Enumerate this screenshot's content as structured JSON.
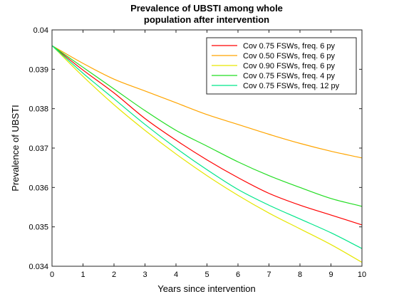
{
  "chart_data": {
    "type": "line",
    "title": [
      "Prevalence of UBSTI among whole",
      "population after intervention"
    ],
    "xlabel": "Years since intervention",
    "ylabel": "Prevalence of UBSTI",
    "xlim": [
      0,
      10
    ],
    "ylim": [
      0.034,
      0.04
    ],
    "xticks": [
      0,
      1,
      2,
      3,
      4,
      5,
      6,
      7,
      8,
      9,
      10
    ],
    "xtick_labels": [
      "0",
      "1",
      "2",
      "3",
      "4",
      "5",
      "6",
      "7",
      "8",
      "9",
      "10"
    ],
    "yticks": [
      0.034,
      0.035,
      0.036,
      0.037,
      0.038,
      0.039,
      0.04
    ],
    "ytick_labels": [
      "0.034",
      "0.035",
      "0.036",
      "0.037",
      "0.038",
      "0.039",
      "0.04"
    ],
    "grid": false,
    "legend_position": "top-right",
    "x": [
      0,
      1,
      2,
      3,
      4,
      5,
      6,
      7,
      8,
      9,
      10
    ],
    "series": [
      {
        "name": "Cov 0.75 FSWs, freq. 6 py",
        "color": "#ff0000",
        "values": [
          0.0396,
          0.03898,
          0.0384,
          0.03775,
          0.0372,
          0.0367,
          0.03625,
          0.03585,
          0.03555,
          0.0353,
          0.03505
        ]
      },
      {
        "name": "Cov 0.50 FSWs, freq. 6 py",
        "color": "#ffa500",
        "values": [
          0.0396,
          0.03915,
          0.03875,
          0.03845,
          0.03815,
          0.03785,
          0.0376,
          0.03735,
          0.03712,
          0.03692,
          0.03675
        ]
      },
      {
        "name": "Cov 0.90 FSWs, freq. 6 py",
        "color": "#e6e600",
        "values": [
          0.0396,
          0.03882,
          0.0381,
          0.03745,
          0.03685,
          0.0363,
          0.0358,
          0.03535,
          0.03495,
          0.03455,
          0.0341
        ]
      },
      {
        "name": "Cov 0.75 FSWs, freq. 4 py",
        "color": "#22dd22",
        "values": [
          0.0396,
          0.03905,
          0.0385,
          0.03795,
          0.03745,
          0.03705,
          0.03665,
          0.0363,
          0.036,
          0.03572,
          0.03552
        ]
      },
      {
        "name": "Cov 0.75 FSWs, freq. 12 py",
        "color": "#00e68a",
        "values": [
          0.0396,
          0.0389,
          0.03825,
          0.0376,
          0.037,
          0.03645,
          0.03595,
          0.03555,
          0.0352,
          0.03485,
          0.03445
        ]
      }
    ]
  }
}
